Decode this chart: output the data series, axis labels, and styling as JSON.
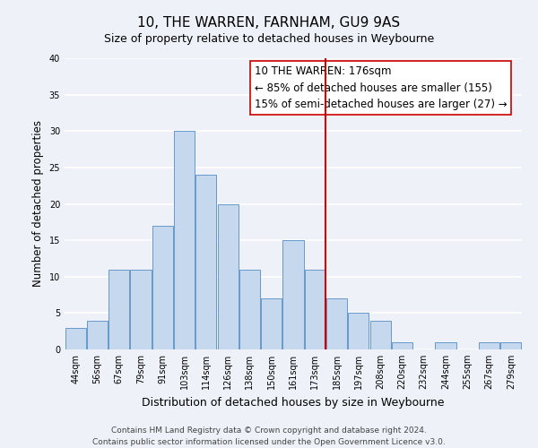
{
  "title": "10, THE WARREN, FARNHAM, GU9 9AS",
  "subtitle": "Size of property relative to detached houses in Weybourne",
  "xlabel": "Distribution of detached houses by size in Weybourne",
  "ylabel": "Number of detached properties",
  "bar_labels": [
    "44sqm",
    "56sqm",
    "67sqm",
    "79sqm",
    "91sqm",
    "103sqm",
    "114sqm",
    "126sqm",
    "138sqm",
    "150sqm",
    "161sqm",
    "173sqm",
    "185sqm",
    "197sqm",
    "208sqm",
    "220sqm",
    "232sqm",
    "244sqm",
    "255sqm",
    "267sqm",
    "279sqm"
  ],
  "bar_values": [
    3,
    4,
    11,
    11,
    17,
    30,
    24,
    20,
    11,
    7,
    15,
    11,
    7,
    5,
    4,
    1,
    0,
    1,
    0,
    1,
    1
  ],
  "bar_color": "#c5d8ee",
  "bar_edge_color": "#6699cc",
  "vline_x_index": 11.5,
  "vline_color": "#cc0000",
  "ylim": [
    0,
    40
  ],
  "yticks": [
    0,
    5,
    10,
    15,
    20,
    25,
    30,
    35,
    40
  ],
  "annotation_box_title": "10 THE WARREN: 176sqm",
  "annotation_line1": "← 85% of detached houses are smaller (155)",
  "annotation_line2": "15% of semi-detached houses are larger (27) →",
  "footer_line1": "Contains HM Land Registry data © Crown copyright and database right 2024.",
  "footer_line2": "Contains public sector information licensed under the Open Government Licence v3.0.",
  "bg_color": "#eef2f8",
  "grid_color": "#ffffff",
  "title_fontsize": 11,
  "subtitle_fontsize": 9,
  "axis_label_fontsize": 9,
  "ylabel_fontsize": 8.5,
  "tick_fontsize": 7,
  "annotation_fontsize": 8.5,
  "footer_fontsize": 6.5,
  "bar_width": 0.95
}
